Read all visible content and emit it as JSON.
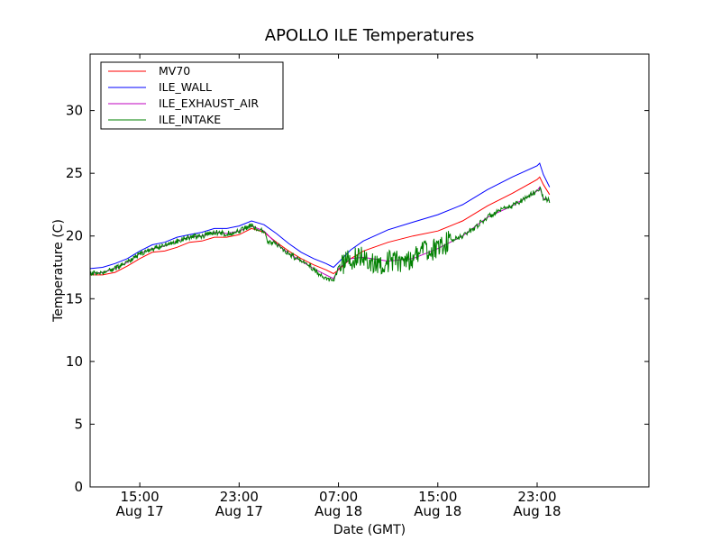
{
  "chart_data": {
    "type": "line",
    "title": "APOLLO ILE Temperatures",
    "xlabel": "Date (GMT)",
    "ylabel": "Temperature (C)",
    "x_unit": "hour offset from Aug 17 00:00 GMT",
    "xlim": [
      11,
      56
    ],
    "ylim": [
      0,
      34.5
    ],
    "yticks": [
      0,
      5,
      10,
      15,
      20,
      25,
      30
    ],
    "xticks": [
      {
        "x": 15,
        "time": "15:00",
        "date": "Aug 17"
      },
      {
        "x": 23,
        "time": "23:00",
        "date": "Aug 17"
      },
      {
        "x": 31,
        "time": "07:00",
        "date": "Aug 18"
      },
      {
        "x": 39,
        "time": "15:00",
        "date": "Aug 18"
      },
      {
        "x": 47,
        "time": "23:00",
        "date": "Aug 18"
      }
    ],
    "grid": false,
    "legend_position": "top-left",
    "series": [
      {
        "name": "MV70",
        "color": "#ff0000",
        "noise": 0,
        "points": [
          [
            11,
            16.9
          ],
          [
            12,
            16.9
          ],
          [
            13,
            17.1
          ],
          [
            14,
            17.6
          ],
          [
            15,
            18.2
          ],
          [
            16,
            18.7
          ],
          [
            17,
            18.8
          ],
          [
            18,
            19.1
          ],
          [
            19,
            19.5
          ],
          [
            20,
            19.6
          ],
          [
            21,
            19.9
          ],
          [
            22,
            19.9
          ],
          [
            23,
            20.1
          ],
          [
            24,
            20.6
          ],
          [
            25,
            20.3
          ],
          [
            26,
            19.5
          ],
          [
            27,
            18.8
          ],
          [
            28,
            18.2
          ],
          [
            29,
            17.7
          ],
          [
            30,
            17.3
          ],
          [
            30.6,
            17.0
          ],
          [
            31,
            17.3
          ],
          [
            32,
            18.2
          ],
          [
            33,
            18.8
          ],
          [
            35,
            19.5
          ],
          [
            37,
            20.0
          ],
          [
            39,
            20.4
          ],
          [
            41,
            21.2
          ],
          [
            43,
            22.4
          ],
          [
            45,
            23.4
          ],
          [
            47,
            24.5
          ],
          [
            47.2,
            24.7
          ],
          [
            47.5,
            24.1
          ],
          [
            48,
            23.3
          ]
        ]
      },
      {
        "name": "ILE_WALL",
        "color": "#0000ff",
        "noise": 0,
        "points": [
          [
            11,
            17.4
          ],
          [
            12,
            17.5
          ],
          [
            13,
            17.8
          ],
          [
            14,
            18.2
          ],
          [
            15,
            18.8
          ],
          [
            16,
            19.3
          ],
          [
            17,
            19.5
          ],
          [
            18,
            19.9
          ],
          [
            19,
            20.1
          ],
          [
            20,
            20.3
          ],
          [
            21,
            20.6
          ],
          [
            22,
            20.6
          ],
          [
            23,
            20.8
          ],
          [
            24,
            21.2
          ],
          [
            25,
            20.9
          ],
          [
            26,
            20.2
          ],
          [
            27,
            19.4
          ],
          [
            28,
            18.7
          ],
          [
            29,
            18.2
          ],
          [
            30,
            17.8
          ],
          [
            30.6,
            17.5
          ],
          [
            31,
            17.9
          ],
          [
            32,
            18.9
          ],
          [
            33,
            19.6
          ],
          [
            35,
            20.5
          ],
          [
            37,
            21.1
          ],
          [
            39,
            21.7
          ],
          [
            41,
            22.5
          ],
          [
            43,
            23.7
          ],
          [
            45,
            24.7
          ],
          [
            47,
            25.6
          ],
          [
            47.2,
            25.8
          ],
          [
            47.5,
            24.9
          ],
          [
            48,
            23.9
          ]
        ]
      },
      {
        "name": "ILE_EXHAUST_AIR",
        "color": "#bf00bf",
        "noise": 0,
        "points": [
          [
            11,
            17.0
          ],
          [
            12,
            17.1
          ],
          [
            13,
            17.4
          ],
          [
            14,
            17.9
          ],
          [
            15,
            18.6
          ],
          [
            16,
            19.0
          ],
          [
            17,
            19.2
          ],
          [
            18,
            19.6
          ],
          [
            19,
            19.9
          ],
          [
            20,
            20.0
          ],
          [
            21,
            20.3
          ],
          [
            22,
            20.2
          ],
          [
            23,
            20.4
          ],
          [
            24,
            20.8
          ],
          [
            25,
            20.4
          ],
          [
            26,
            19.4
          ],
          [
            27,
            18.6
          ],
          [
            28,
            18.0
          ],
          [
            29,
            17.4
          ],
          [
            30,
            16.9
          ],
          [
            30.6,
            16.6
          ],
          [
            31,
            17.4
          ],
          [
            32,
            18.2
          ],
          [
            33,
            18.3
          ],
          [
            35,
            18.0
          ],
          [
            37,
            18.2
          ],
          [
            39,
            19.0
          ],
          [
            41,
            20.0
          ],
          [
            43,
            21.5
          ],
          [
            45,
            22.4
          ],
          [
            47,
            23.6
          ],
          [
            47.2,
            23.9
          ],
          [
            47.5,
            23.0
          ],
          [
            48,
            22.8
          ]
        ]
      },
      {
        "name": "ILE_INTAKE",
        "color": "#008000",
        "noise": 1,
        "points": [
          [
            11,
            17.0
          ],
          [
            12,
            17.1
          ],
          [
            13,
            17.4
          ],
          [
            14,
            17.9
          ],
          [
            15,
            18.6
          ],
          [
            16,
            19.0
          ],
          [
            17,
            19.2
          ],
          [
            18,
            19.6
          ],
          [
            19,
            19.9
          ],
          [
            20,
            20.0
          ],
          [
            21,
            20.3
          ],
          [
            22,
            20.2
          ],
          [
            23,
            20.4
          ],
          [
            24,
            20.8
          ],
          [
            25,
            20.4
          ],
          [
            25.3,
            19.5
          ],
          [
            26,
            19.4
          ],
          [
            27,
            18.6
          ],
          [
            28,
            18.0
          ],
          [
            29,
            17.4
          ],
          [
            29.6,
            16.8
          ],
          [
            30,
            16.6
          ],
          [
            30.6,
            16.5
          ],
          [
            31,
            17.4
          ],
          [
            32,
            18.2
          ],
          [
            33,
            18.3
          ],
          [
            34,
            17.8
          ],
          [
            35,
            18.0
          ],
          [
            36,
            18.0
          ],
          [
            37,
            18.2
          ],
          [
            37.5,
            18.9
          ],
          [
            38,
            18.8
          ],
          [
            39,
            19.0
          ],
          [
            40,
            19.6
          ],
          [
            41,
            20.0
          ],
          [
            42,
            20.7
          ],
          [
            43,
            21.5
          ],
          [
            44,
            22.0
          ],
          [
            45,
            22.4
          ],
          [
            46,
            23.0
          ],
          [
            47,
            23.6
          ],
          [
            47.2,
            23.9
          ],
          [
            47.5,
            23.0
          ],
          [
            48,
            22.8
          ]
        ]
      }
    ]
  }
}
